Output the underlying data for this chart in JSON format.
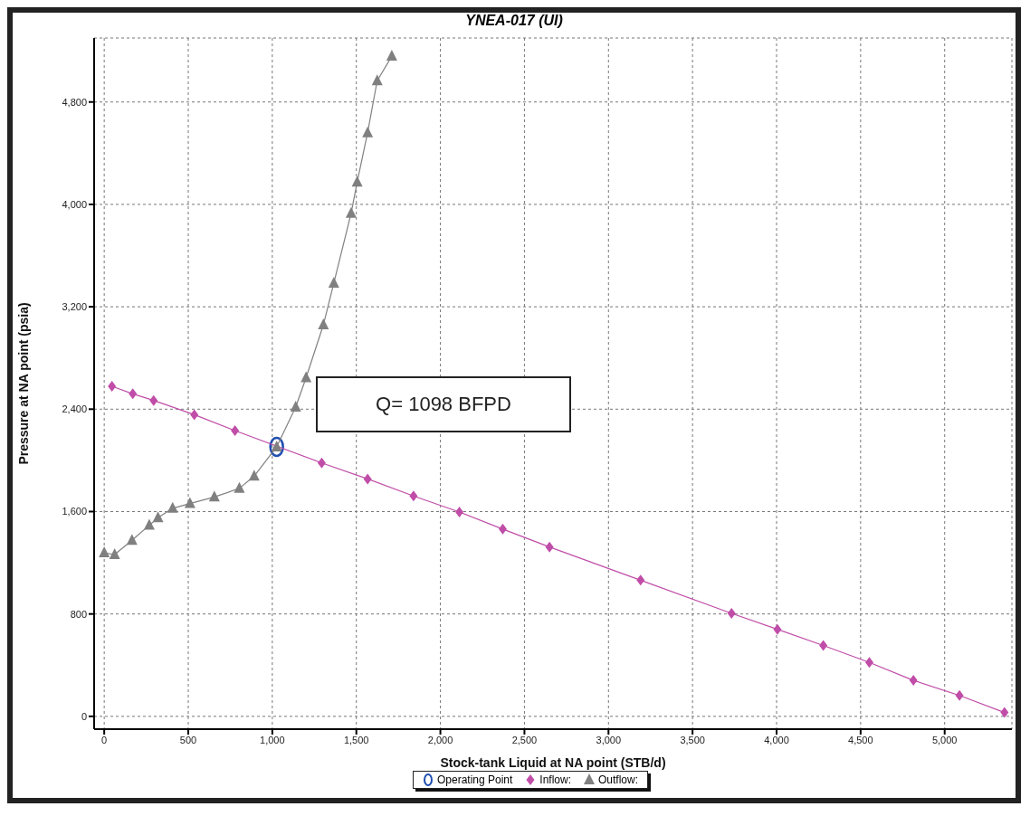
{
  "chart_data": {
    "type": "line",
    "title": "YNEA-017 (UI)",
    "xlabel": "Stock-tank Liquid at NA point (STB/d)",
    "ylabel": "Pressure at NA point (psia)",
    "xlim": [
      -60,
      5400
    ],
    "ylim": [
      -100,
      5300
    ],
    "xticks": [
      0,
      {
        "value": 500,
        "label": "500"
      },
      {
        "value": 1000,
        "label": "1,000"
      },
      {
        "value": 1500,
        "label": "1,500"
      },
      {
        "value": 2000,
        "label": "2,000"
      },
      {
        "value": 2500,
        "label": "2,500"
      },
      {
        "value": 3000,
        "label": "3,000"
      },
      {
        "value": 3500,
        "label": "3,500"
      },
      {
        "value": 4000,
        "label": "4,000"
      },
      {
        "value": 4500,
        "label": "4,500"
      },
      {
        "value": 5000,
        "label": "5,000"
      }
    ],
    "yticks": [
      0,
      800,
      {
        "value": 1600,
        "label": "1,600"
      },
      {
        "value": 2400,
        "label": "2,400"
      },
      {
        "value": 3200,
        "label": "3,200"
      },
      {
        "value": 4000,
        "label": "4,000"
      },
      {
        "value": 4800,
        "label": "4,800"
      }
    ],
    "grid": true,
    "legend": "bottom",
    "annotations": [
      "Q= 1098 BFPD"
    ],
    "series": [
      {
        "name": "Operating Point",
        "type": "scatter",
        "marker": "circle",
        "color": "#1f4fb0",
        "x": [
          1026
        ],
        "values": [
          2106
        ]
      },
      {
        "name": "Inflow:",
        "marker": "diamond",
        "line_style": "solid",
        "color": "#c04da8",
        "x": [
          46,
          170,
          294,
          536,
          778,
          1026,
          1294,
          1567,
          1840,
          2113,
          2371,
          2649,
          3191,
          3732,
          4005,
          4278,
          4552,
          4814,
          5088,
          5356
        ],
        "values": [
          2579,
          2520,
          2468,
          2357,
          2232,
          null,
          1980,
          1855,
          1722,
          1596,
          1463,
          1323,
          1064,
          805,
          680,
          554,
          421,
          281,
          163,
          30
        ]
      },
      {
        "name": "Outflow:",
        "marker": "triangle",
        "line_style": "solid",
        "color": "#808080",
        "x": [
          0,
          62,
          165,
          268,
          320,
          407,
          510,
          655,
          804,
          892,
          1026,
          1139,
          1201,
          1304,
          1366,
          1469,
          1505,
          1567,
          1624,
          1711
        ],
        "values": [
          1278,
          1264,
          1375,
          1493,
          1552,
          1626,
          1663,
          1714,
          1781,
          1877,
          2106,
          2416,
          2646,
          3059,
          3385,
          3931,
          4175,
          4560,
          4966,
          5158
        ]
      }
    ]
  }
}
